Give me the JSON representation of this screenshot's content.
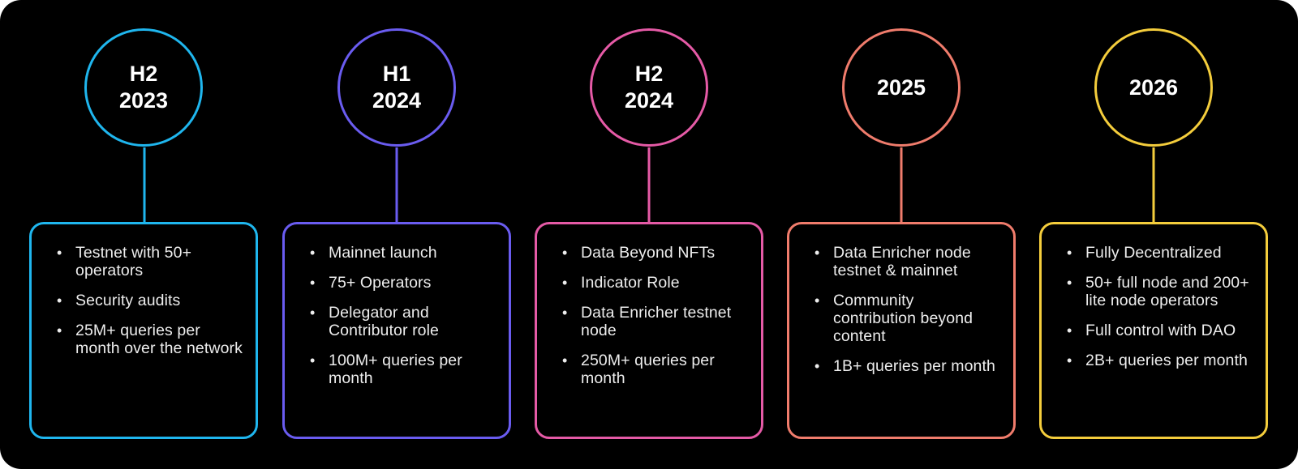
{
  "roadmap": {
    "milestones": [
      {
        "line1": "H2",
        "line2": "2023",
        "color": "#1fb6ee",
        "items": [
          "Testnet with 50+ operators",
          "Security audits",
          "25M+ queries per month over the network"
        ]
      },
      {
        "line1": "H1",
        "line2": "2024",
        "color": "#6a5cf0",
        "items": [
          "Mainnet launch",
          "75+ Operators",
          "Delegator and Contributor role",
          "100M+ queries per month"
        ]
      },
      {
        "line1": "H2",
        "line2": "2024",
        "color": "#e55aa6",
        "items": [
          "Data Beyond NFTs",
          "Indicator Role",
          "Data Enricher testnet node",
          "250M+ queries per month"
        ]
      },
      {
        "line1": "",
        "line2": "2025",
        "color": "#f07c6c",
        "items": [
          "Data Enricher node testnet & mainnet",
          "Community contribution beyond content",
          "1B+ queries per month"
        ]
      },
      {
        "line1": "",
        "line2": "2026",
        "color": "#f4cd3c",
        "items": [
          "Fully Decentralized",
          "50+ full node and 200+ lite node operators",
          "Full control with DAO",
          "2B+ queries per month"
        ]
      }
    ]
  }
}
